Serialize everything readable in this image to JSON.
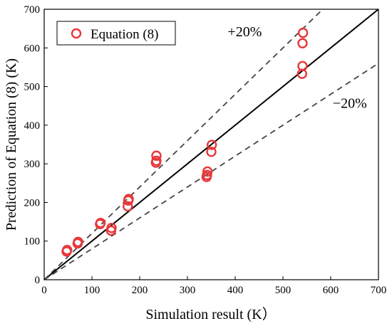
{
  "chart_data": {
    "type": "scatter",
    "xlabel": "Simulation result (K）",
    "ylabel": "Prediction of Equation (8) (K)",
    "xlim": [
      0,
      700
    ],
    "ylim": [
      0,
      700
    ],
    "xticks": [
      0,
      100,
      200,
      300,
      400,
      500,
      600,
      700
    ],
    "yticks": [
      0,
      100,
      200,
      300,
      400,
      500,
      600,
      700
    ],
    "grid": false,
    "legend_position": "top-left",
    "series": [
      {
        "name": "Equation (8)",
        "marker": "open-circle",
        "color": "#e8383b",
        "points": [
          [
            47,
            73
          ],
          [
            48,
            77
          ],
          [
            70,
            94
          ],
          [
            71,
            98
          ],
          [
            117,
            144
          ],
          [
            118,
            147
          ],
          [
            140,
            127
          ],
          [
            141,
            134
          ],
          [
            175,
            190
          ],
          [
            176,
            205
          ],
          [
            177,
            209
          ],
          [
            234,
            303
          ],
          [
            235,
            308
          ],
          [
            235,
            321
          ],
          [
            340,
            266
          ],
          [
            341,
            271
          ],
          [
            342,
            280
          ],
          [
            350,
            331
          ],
          [
            351,
            349
          ],
          [
            540,
            533
          ],
          [
            541,
            553
          ],
          [
            541,
            612
          ],
          [
            542,
            639
          ]
        ]
      }
    ],
    "reference_lines": [
      {
        "name": "y=x",
        "slope": 1.0,
        "style": "solid",
        "color": "#000000"
      },
      {
        "name": "+20%",
        "slope": 1.2,
        "style": "dashed",
        "color": "#444444",
        "label": "+20%",
        "label_at": [
          420,
          630
        ]
      },
      {
        "name": "-20%",
        "slope": 0.8,
        "style": "dashed",
        "color": "#444444",
        "label": "−20%",
        "label_at": [
          640,
          445
        ]
      }
    ]
  }
}
